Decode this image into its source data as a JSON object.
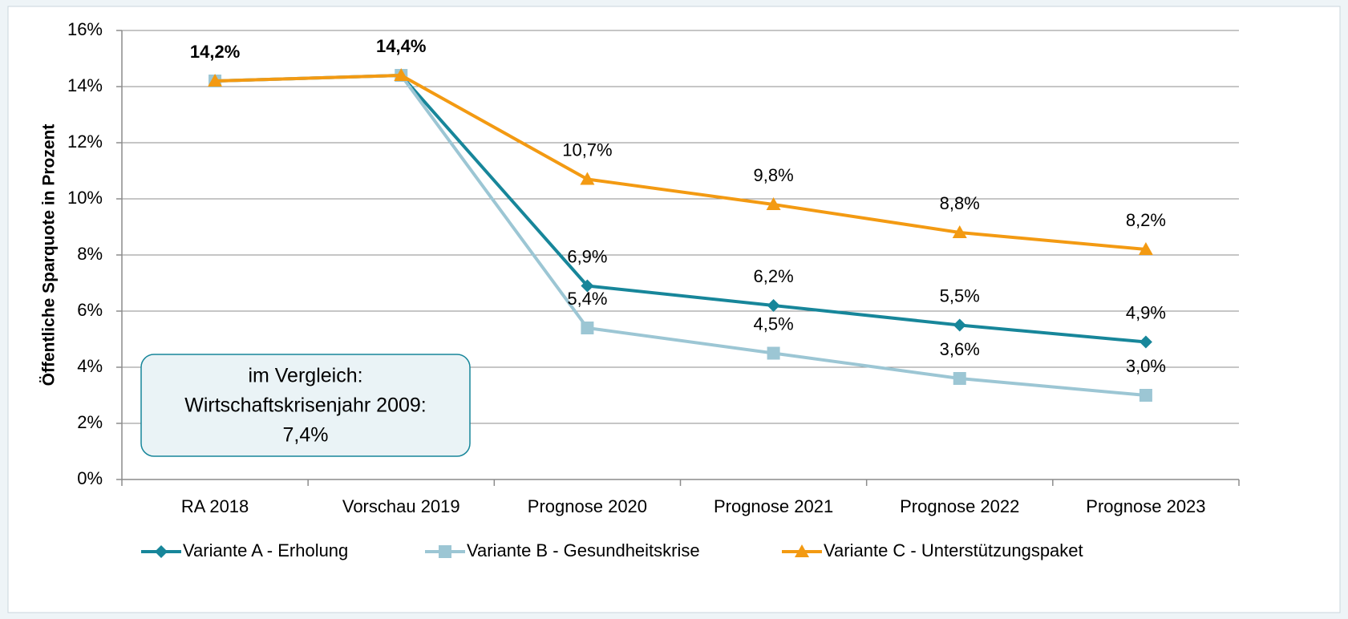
{
  "chart_data": {
    "type": "line",
    "ylabel": "Öffentliche Sparquote in Prozent",
    "categories": [
      "RA 2018",
      "Vorschau 2019",
      "Prognose 2020",
      "Prognose 2021",
      "Prognose 2022",
      "Prognose 2023"
    ],
    "series": [
      {
        "name": "Variante A - Erholung",
        "color": "#17869a",
        "marker": "diamond",
        "values": [
          14.2,
          14.4,
          6.9,
          6.2,
          5.5,
          4.9
        ],
        "value_labels": [
          null,
          null,
          "6,9%",
          "6,2%",
          "5,5%",
          "4,9%"
        ]
      },
      {
        "name": "Variante B - Gesundheitskrise",
        "color": "#9cc6d4",
        "marker": "square",
        "values": [
          14.2,
          14.4,
          5.4,
          4.5,
          3.6,
          3.0
        ],
        "value_labels": [
          null,
          null,
          "5,4%",
          "4,5%",
          "3,6%",
          "3,0%"
        ]
      },
      {
        "name": "Variante C - Unterstützungspaket",
        "color": "#f39a12",
        "marker": "triangle",
        "values": [
          14.2,
          14.4,
          10.7,
          9.8,
          8.8,
          8.2
        ],
        "value_labels": [
          "14,2%",
          "14,4%",
          "10,7%",
          "9,8%",
          "8,8%",
          "8,2%"
        ]
      }
    ],
    "ylim": [
      0,
      16
    ],
    "yticks": [
      {
        "value": 0,
        "label": "0%"
      },
      {
        "value": 2,
        "label": "2%"
      },
      {
        "value": 4,
        "label": "4%"
      },
      {
        "value": 6,
        "label": "6%"
      },
      {
        "value": 8,
        "label": "8%"
      },
      {
        "value": 10,
        "label": "10%"
      },
      {
        "value": 12,
        "label": "12%"
      },
      {
        "value": 14,
        "label": "14%"
      },
      {
        "value": 16,
        "label": "16%"
      }
    ],
    "grid": true,
    "legend": "bottom",
    "annotation": [
      "im Vergleich:",
      "Wirtschaftskrisenjahr 2009:",
      "7,4%"
    ]
  }
}
